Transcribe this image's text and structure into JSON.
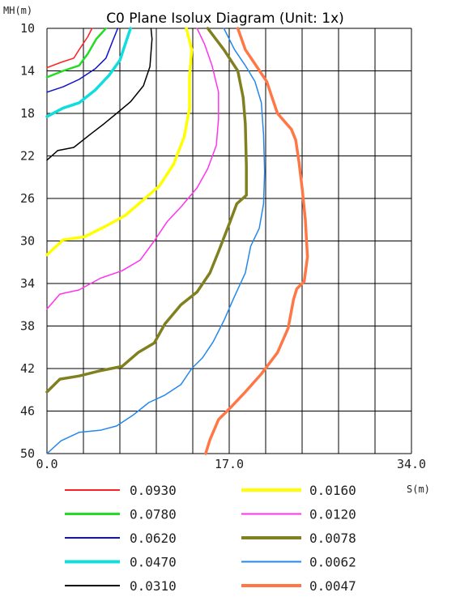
{
  "chart_data": {
    "type": "line",
    "title": "C0 Plane Isolux Diagram (Unit: 1x)",
    "xlabel": "S(m)",
    "ylabel": "MH(m)",
    "xlim": [
      0,
      34
    ],
    "ylim": [
      10,
      50
    ],
    "y_inverted": true,
    "x_ticks": [
      "0.0",
      "17.0",
      "34.0"
    ],
    "y_ticks": [
      "10",
      "14",
      "18",
      "22",
      "26",
      "30",
      "34",
      "38",
      "42",
      "46",
      "50"
    ],
    "grid": true,
    "legend_placement": "bottom",
    "series": [
      {
        "name": "0.0930",
        "color": "#ff2020",
        "points": [
          [
            0,
            13.7
          ],
          [
            1.3,
            13.2
          ],
          [
            2.5,
            12.8
          ],
          [
            3.0,
            12.0
          ],
          [
            3.8,
            10.8
          ],
          [
            4.2,
            10.0
          ]
        ]
      },
      {
        "name": "0.0780",
        "color": "#22dd22",
        "points": [
          [
            0,
            14.6
          ],
          [
            1.5,
            14.0
          ],
          [
            3.0,
            13.5
          ],
          [
            3.8,
            12.4
          ],
          [
            4.6,
            11.0
          ],
          [
            5.5,
            10.0
          ]
        ]
      },
      {
        "name": "0.0620",
        "color": "#1010cc",
        "points": [
          [
            0,
            16.0
          ],
          [
            1.5,
            15.5
          ],
          [
            3.0,
            14.8
          ],
          [
            4.5,
            13.8
          ],
          [
            5.5,
            12.8
          ],
          [
            6.2,
            11.0
          ],
          [
            6.6,
            10.0
          ]
        ]
      },
      {
        "name": "0.0470",
        "color": "#11dddd",
        "points": [
          [
            0,
            18.3
          ],
          [
            1.5,
            17.5
          ],
          [
            3.0,
            17.0
          ],
          [
            4.5,
            15.8
          ],
          [
            5.8,
            14.4
          ],
          [
            6.8,
            13.0
          ],
          [
            7.4,
            11.2
          ],
          [
            7.8,
            10.0
          ]
        ]
      },
      {
        "name": "0.0310",
        "color": "#000000",
        "points": [
          [
            0,
            22.4
          ],
          [
            1.0,
            21.5
          ],
          [
            2.5,
            21.2
          ],
          [
            4.0,
            20.0
          ],
          [
            5.3,
            19.0
          ],
          [
            6.5,
            18.0
          ],
          [
            7.8,
            16.9
          ],
          [
            9.0,
            15.4
          ],
          [
            9.6,
            13.6
          ],
          [
            9.8,
            11.0
          ],
          [
            9.7,
            10.0
          ]
        ]
      },
      {
        "name": "0.0160",
        "color": "#ffff00",
        "points": [
          [
            0,
            31.3
          ],
          [
            1.5,
            29.9
          ],
          [
            3.5,
            29.6
          ],
          [
            5.5,
            28.6
          ],
          [
            7.3,
            27.6
          ],
          [
            8.8,
            26.3
          ],
          [
            10.5,
            24.8
          ],
          [
            11.8,
            22.8
          ],
          [
            12.8,
            20.2
          ],
          [
            13.3,
            17.5
          ],
          [
            13.3,
            14.5
          ],
          [
            13.5,
            12.0
          ],
          [
            13.0,
            10.0
          ]
        ]
      },
      {
        "name": "0.0120",
        "color": "#ff33ee",
        "points": [
          [
            0,
            36.4
          ],
          [
            1.2,
            35.0
          ],
          [
            3.0,
            34.6
          ],
          [
            5.0,
            33.5
          ],
          [
            7.0,
            32.8
          ],
          [
            8.7,
            31.8
          ],
          [
            10.0,
            30.0
          ],
          [
            11.2,
            28.2
          ],
          [
            12.5,
            26.8
          ],
          [
            14.0,
            25.0
          ],
          [
            15.0,
            23.2
          ],
          [
            15.8,
            21.0
          ],
          [
            16.0,
            18.5
          ],
          [
            16.0,
            16.0
          ],
          [
            15.4,
            13.5
          ],
          [
            14.7,
            11.5
          ],
          [
            14.0,
            10.0
          ]
        ]
      },
      {
        "name": "0.0078",
        "color": "#808020",
        "points": [
          [
            0,
            44.2
          ],
          [
            1.2,
            43.0
          ],
          [
            3.0,
            42.7
          ],
          [
            5.0,
            42.2
          ],
          [
            7.0,
            41.8
          ],
          [
            8.5,
            40.5
          ],
          [
            10.0,
            39.6
          ],
          [
            11.0,
            37.8
          ],
          [
            12.5,
            36.0
          ],
          [
            14.0,
            34.8
          ],
          [
            15.2,
            33.0
          ],
          [
            16.0,
            31.0
          ],
          [
            17.0,
            28.4
          ],
          [
            17.7,
            26.5
          ],
          [
            18.6,
            25.7
          ],
          [
            18.6,
            23.0
          ],
          [
            18.5,
            19.0
          ],
          [
            18.3,
            16.5
          ],
          [
            17.8,
            14.0
          ],
          [
            16.5,
            12.0
          ],
          [
            15.0,
            10.0
          ]
        ]
      },
      {
        "name": "0.0062",
        "color": "#2288ee",
        "points": [
          [
            0,
            50.0
          ],
          [
            1.3,
            48.8
          ],
          [
            3.0,
            48.0
          ],
          [
            5.0,
            47.8
          ],
          [
            6.5,
            47.4
          ],
          [
            8.0,
            46.4
          ],
          [
            9.5,
            45.2
          ],
          [
            11.0,
            44.5
          ],
          [
            12.5,
            43.5
          ],
          [
            13.5,
            42.0
          ],
          [
            14.5,
            41.0
          ],
          [
            15.5,
            39.5
          ],
          [
            16.5,
            37.5
          ],
          [
            17.5,
            35.2
          ],
          [
            18.5,
            33.0
          ],
          [
            19.0,
            30.5
          ],
          [
            19.8,
            28.8
          ],
          [
            20.2,
            26.5
          ],
          [
            20.3,
            23.5
          ],
          [
            20.2,
            20.0
          ],
          [
            20.0,
            17.0
          ],
          [
            19.4,
            15.0
          ],
          [
            18.5,
            13.5
          ],
          [
            17.5,
            12.0
          ],
          [
            16.5,
            10.0
          ]
        ]
      },
      {
        "name": "0.0047",
        "color": "#ff7744",
        "points": [
          [
            14.8,
            50.0
          ],
          [
            15.2,
            48.7
          ],
          [
            16.0,
            46.8
          ],
          [
            17.0,
            45.8
          ],
          [
            18.5,
            44.2
          ],
          [
            20.0,
            42.5
          ],
          [
            21.5,
            40.5
          ],
          [
            22.5,
            38.2
          ],
          [
            23.0,
            35.5
          ],
          [
            23.3,
            34.5
          ],
          [
            24.0,
            33.8
          ],
          [
            24.3,
            31.5
          ],
          [
            24.1,
            28.0
          ],
          [
            23.8,
            25.0
          ],
          [
            23.5,
            22.5
          ],
          [
            23.2,
            20.5
          ],
          [
            22.8,
            19.5
          ],
          [
            21.5,
            18.0
          ],
          [
            21.0,
            16.5
          ],
          [
            20.5,
            15.0
          ],
          [
            19.5,
            13.5
          ],
          [
            18.5,
            12.0
          ],
          [
            17.8,
            10.0
          ]
        ]
      }
    ]
  }
}
